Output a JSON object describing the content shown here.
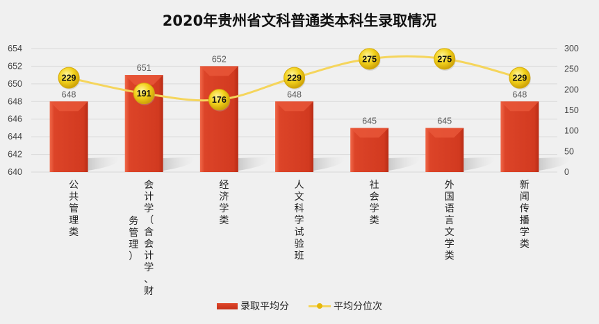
{
  "chart_data": {
    "type": "bar",
    "title": "2020年贵州省文科普通类本科生录取情况",
    "categories": [
      [
        "公共管理类"
      ],
      [
        "会计学（含会计学、财",
        "务管理）"
      ],
      [
        "经济学类"
      ],
      [
        "人文科学试验班"
      ],
      [
        "社会学类"
      ],
      [
        "外国语言文学类"
      ],
      [
        "新闻传播学类"
      ]
    ],
    "series": [
      {
        "name": "录取平均分",
        "type": "bar",
        "axis": "left",
        "values": [
          648,
          651,
          652,
          648,
          645,
          645,
          648
        ],
        "color": "#d43a20"
      },
      {
        "name": "平均分位次",
        "type": "line",
        "axis": "right",
        "values": [
          229,
          191,
          176,
          229,
          275,
          275,
          229
        ],
        "color": "#f5d55c"
      }
    ],
    "y_left": {
      "ylim": [
        640,
        654
      ],
      "ticks": [
        640,
        642,
        644,
        646,
        648,
        650,
        652,
        654
      ]
    },
    "y_right": {
      "ylim": [
        0,
        300
      ],
      "ticks": [
        0,
        50,
        100,
        150,
        200,
        250,
        300
      ]
    },
    "grid": true,
    "legend": {
      "position": "bottom",
      "entries": [
        "录取平均分",
        "平均分位次"
      ]
    }
  }
}
